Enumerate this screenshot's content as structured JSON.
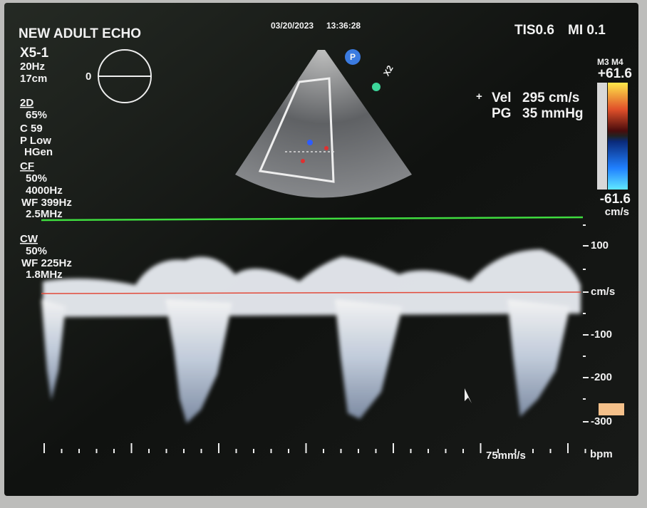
{
  "header": {
    "title": "NEW ADULT ECHO",
    "date": "03/20/2023",
    "time": "13:36:28",
    "tis": "TIS0.6",
    "mi": "MI 0.1"
  },
  "probe": {
    "name": "X5-1",
    "frame_rate": "20Hz",
    "depth": "17cm",
    "angle": "0"
  },
  "mode_2d": {
    "label": "2D",
    "gain": "65%",
    "compression": "C 59",
    "power": "P Low",
    "frequency": "HGen"
  },
  "color_flow": {
    "label": "CF",
    "gain": "50%",
    "prf": "4000Hz",
    "wall_filter": "WF 399Hz",
    "frequency": "2.5MHz"
  },
  "cw": {
    "label": "CW",
    "gain": "50%",
    "wall_filter": "WF 225Hz",
    "frequency": "1.8MHz"
  },
  "image_markers": {
    "orientation": "P",
    "zoom": "X2"
  },
  "measurement": {
    "marker": "+",
    "vel_label": "Vel",
    "vel_value": "295 cm/s",
    "pg_label": "PG",
    "pg_value": "35 mmHg"
  },
  "color_bar": {
    "maps": "M3 M4",
    "max": "+61.6",
    "min": "-61.6",
    "unit": "cm/s"
  },
  "doppler_scale": {
    "labels": [
      "100",
      "cm/s",
      "-100",
      "-200",
      "-300"
    ]
  },
  "footer": {
    "sweep": "75mm/s",
    "heart_rate": "bpm"
  }
}
